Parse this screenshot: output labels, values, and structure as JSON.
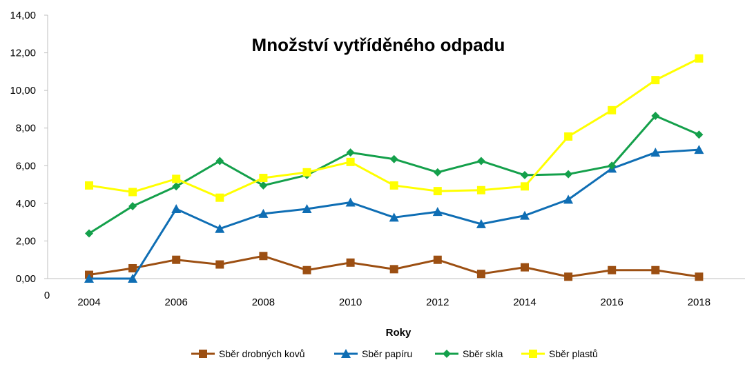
{
  "chart_data": {
    "type": "line",
    "title": "Množství vytříděného odpadu",
    "xlabel": "Roky",
    "ylabel": "",
    "x": [
      2004,
      2005,
      2006,
      2007,
      2008,
      2009,
      2010,
      2011,
      2012,
      2013,
      2014,
      2015,
      2016,
      2017,
      2018
    ],
    "x_tick_labels": [
      "2004",
      "2006",
      "2008",
      "2010",
      "2012",
      "2014",
      "2016",
      "2018"
    ],
    "x_origin_label": "0",
    "ylim": [
      0,
      14
    ],
    "y_tick_labels": [
      "0,00",
      "2,00",
      "4,00",
      "6,00",
      "8,00",
      "10,00",
      "12,00",
      "14,00"
    ],
    "legend_position": "bottom",
    "series": [
      {
        "name": "Sběr drobných kovů",
        "color": "#9C4F12",
        "marker": "square",
        "values": [
          0.2,
          0.55,
          1.0,
          0.75,
          1.2,
          0.45,
          0.85,
          0.5,
          1.0,
          0.25,
          0.6,
          0.1,
          0.45,
          0.45,
          0.1
        ]
      },
      {
        "name": "Sběr papíru",
        "color": "#0F6EB4",
        "marker": "triangle",
        "values": [
          0.0,
          0.0,
          3.7,
          2.65,
          3.45,
          3.7,
          4.05,
          3.25,
          3.55,
          2.9,
          3.35,
          4.2,
          5.85,
          6.7,
          6.85
        ]
      },
      {
        "name": "Sběr skla",
        "color": "#14A04B",
        "marker": "diamond",
        "values": [
          2.4,
          3.85,
          4.9,
          6.25,
          4.95,
          5.5,
          6.7,
          6.35,
          5.65,
          6.25,
          5.5,
          5.55,
          6.0,
          8.65,
          7.65
        ]
      },
      {
        "name": "Sběr plastů",
        "color": "#FFFF00",
        "marker": "square",
        "values": [
          4.95,
          4.6,
          5.3,
          4.3,
          5.35,
          5.65,
          6.2,
          4.95,
          4.65,
          4.7,
          4.9,
          7.55,
          8.95,
          10.55,
          11.7
        ]
      }
    ]
  }
}
